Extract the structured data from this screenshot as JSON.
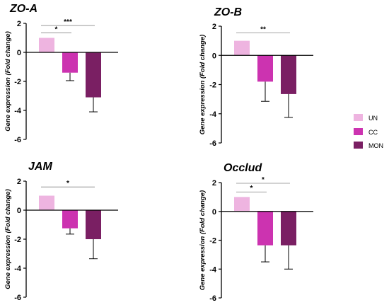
{
  "chart_data": [
    {
      "type": "bar",
      "title": "ZO-A",
      "ylabel": "Gene expression (Fold change)",
      "categories": [
        "UN",
        "CC",
        "MON"
      ],
      "values": [
        1.0,
        -1.4,
        -3.1
      ],
      "error": [
        0,
        0.55,
        1.0
      ],
      "ylim": [
        -6,
        2
      ],
      "yticks": [
        -6,
        -4,
        -2,
        0,
        2
      ],
      "significance": [
        {
          "from": 0,
          "to": 1,
          "y": 1.35,
          "label": "*"
        },
        {
          "from": 0,
          "to": 2,
          "y": 1.85,
          "label": "***"
        }
      ]
    },
    {
      "type": "bar",
      "title": "ZO-B",
      "ylabel": "Gene expression (Fold change)",
      "categories": [
        "UN",
        "CC",
        "MON"
      ],
      "values": [
        1.0,
        -1.8,
        -2.65
      ],
      "error": [
        0,
        1.35,
        1.6
      ],
      "ylim": [
        -6,
        2
      ],
      "yticks": [
        -6,
        -4,
        -2,
        0,
        2
      ],
      "significance": [
        {
          "from": 0,
          "to": 2,
          "y": 1.55,
          "label": "**"
        }
      ]
    },
    {
      "type": "bar",
      "title": "JAM",
      "ylabel": "Gene expression (Fold change)",
      "categories": [
        "UN",
        "CC",
        "MON"
      ],
      "values": [
        1.0,
        -1.25,
        -2.0
      ],
      "error": [
        0,
        0.4,
        1.35
      ],
      "ylim": [
        -6,
        2
      ],
      "yticks": [
        -6,
        -4,
        -2,
        0,
        2
      ],
      "significance": [
        {
          "from": 0,
          "to": 2,
          "y": 1.6,
          "label": "*"
        }
      ]
    },
    {
      "type": "bar",
      "title": "Occlud",
      "ylabel": "Gene expression (Fold change)",
      "categories": [
        "UN",
        "CC",
        "MON"
      ],
      "values": [
        1.0,
        -2.35,
        -2.35
      ],
      "error": [
        0,
        1.15,
        1.65
      ],
      "ylim": [
        -6,
        2
      ],
      "yticks": [
        -6,
        -4,
        -2,
        0,
        2
      ],
      "significance": [
        {
          "from": 0,
          "to": 1,
          "y": 1.35,
          "label": "*"
        },
        {
          "from": 0,
          "to": 2,
          "y": 1.95,
          "label": "*"
        }
      ]
    }
  ],
  "legend": [
    {
      "label": "UN",
      "color": "#EEB4E0"
    },
    {
      "label": "CC",
      "color": "#CC33B0"
    },
    {
      "label": "MON",
      "color": "#7A1F63"
    }
  ]
}
